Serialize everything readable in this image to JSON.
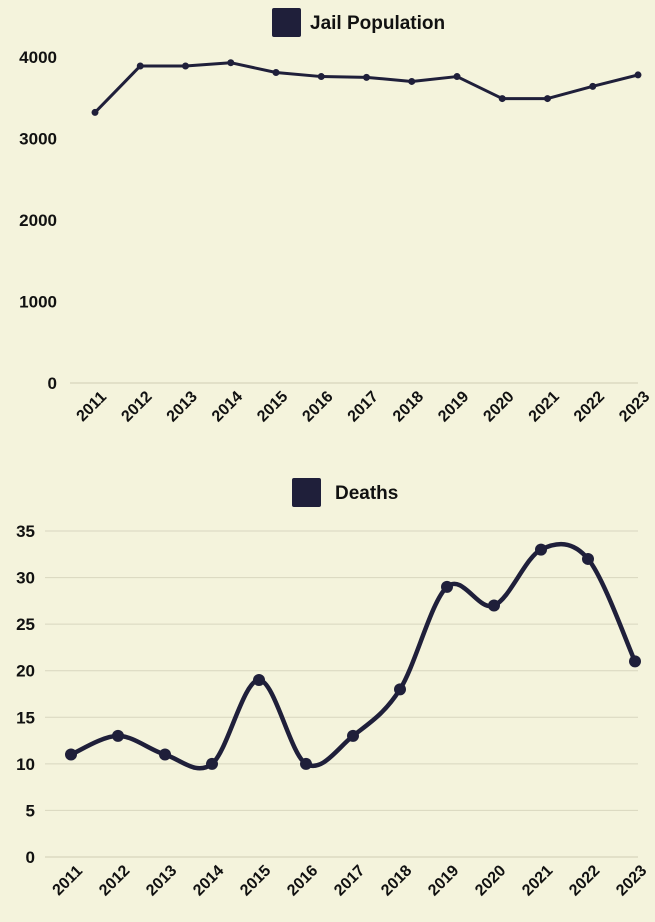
{
  "chart_data": [
    {
      "type": "line",
      "categories": [
        "2011",
        "2012",
        "2013",
        "2014",
        "2015",
        "2016",
        "2017",
        "2018",
        "2019",
        "2020",
        "2021",
        "2022",
        "2023"
      ],
      "series": [
        {
          "name": "Jail Population",
          "values": [
            3320,
            3890,
            3890,
            3930,
            3810,
            3760,
            3750,
            3700,
            3760,
            3490,
            3490,
            3640,
            3780
          ]
        }
      ],
      "ylim": [
        0,
        4000
      ],
      "yticks": [
        0,
        1000,
        2000,
        3000,
        4000
      ],
      "grid": false,
      "legend_position": "top",
      "smooth": false,
      "color": "#1f1f3a"
    },
    {
      "type": "line",
      "categories": [
        "2011",
        "2012",
        "2013",
        "2014",
        "2015",
        "2016",
        "2017",
        "2018",
        "2019",
        "2020",
        "2021",
        "2022",
        "2023"
      ],
      "series": [
        {
          "name": "Deaths",
          "values": [
            11,
            13,
            11,
            10,
            19,
            10,
            13,
            18,
            29,
            27,
            33,
            32,
            21
          ]
        }
      ],
      "ylim": [
        0,
        35
      ],
      "yticks": [
        0,
        5,
        10,
        15,
        20,
        25,
        30,
        35
      ],
      "grid": true,
      "legend_position": "top",
      "smooth": true,
      "color": "#1f1f3a"
    }
  ]
}
